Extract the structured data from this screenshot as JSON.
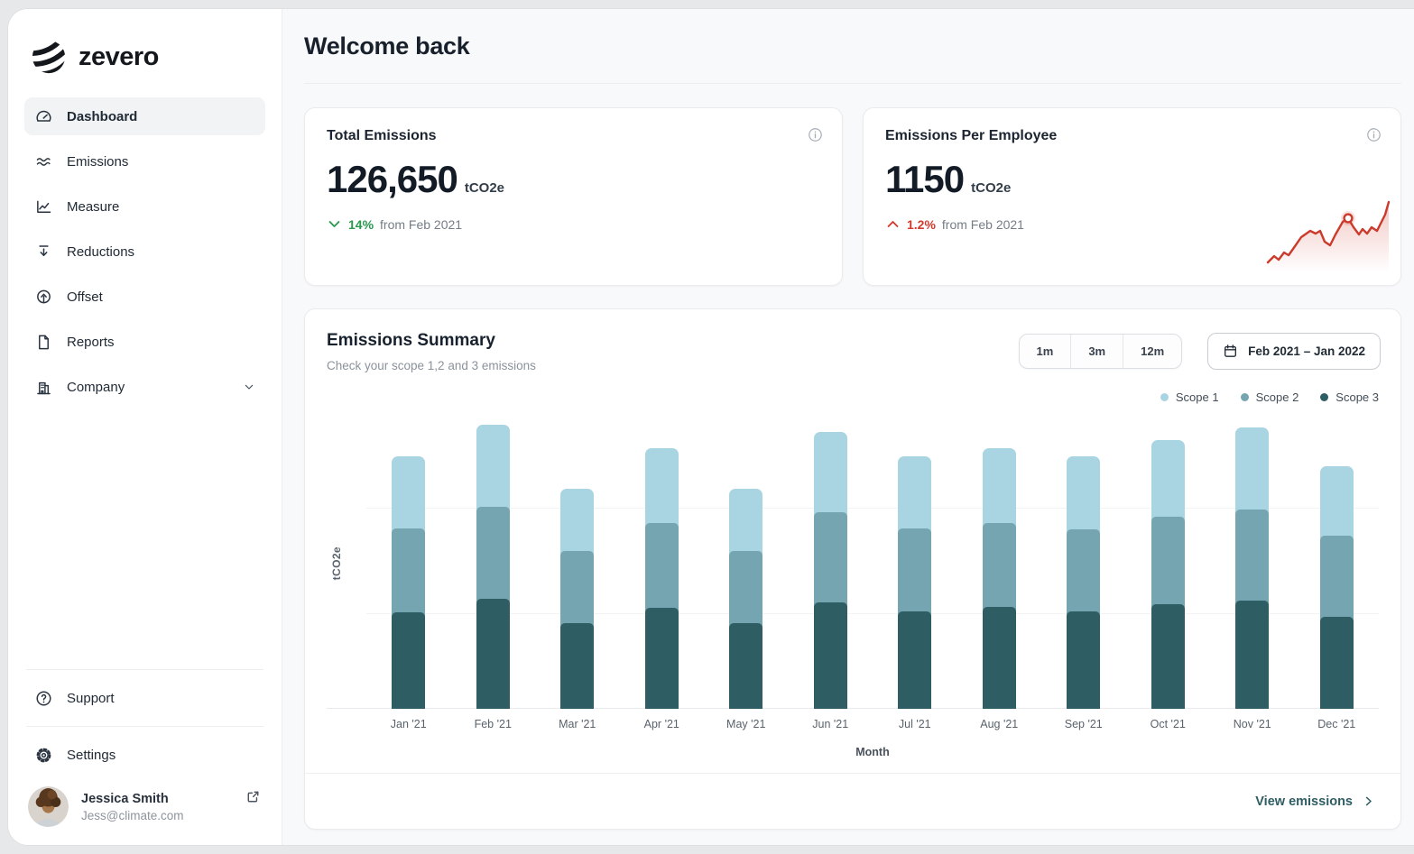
{
  "app": {
    "brand": "zevero"
  },
  "sidebar": {
    "nav": [
      {
        "id": "dashboard",
        "label": "Dashboard",
        "icon": "gauge-icon",
        "active": true,
        "has_chevron": false
      },
      {
        "id": "emissions",
        "label": "Emissions",
        "icon": "waves-icon",
        "active": false,
        "has_chevron": false
      },
      {
        "id": "measure",
        "label": "Measure",
        "icon": "line-chart-icon",
        "active": false,
        "has_chevron": false
      },
      {
        "id": "reductions",
        "label": "Reductions",
        "icon": "arrow-down-icon",
        "active": false,
        "has_chevron": false
      },
      {
        "id": "offset",
        "label": "Offset",
        "icon": "tree-icon",
        "active": false,
        "has_chevron": false
      },
      {
        "id": "reports",
        "label": "Reports",
        "icon": "document-icon",
        "active": false,
        "has_chevron": false
      },
      {
        "id": "company",
        "label": "Company",
        "icon": "building-icon",
        "active": false,
        "has_chevron": true
      }
    ],
    "footer_nav": [
      {
        "id": "support",
        "label": "Support",
        "icon": "question-circle-icon"
      },
      {
        "id": "settings",
        "label": "Settings",
        "icon": "gear-icon"
      }
    ],
    "user": {
      "name": "Jessica Smith",
      "email": "Jess@climate.com"
    }
  },
  "header": {
    "title": "Welcome back"
  },
  "cards": {
    "total": {
      "title": "Total Emissions",
      "value": "126,650",
      "unit": "tCO2e",
      "delta": "14%",
      "delta_suffix": "from Feb 2021",
      "trend": "down",
      "delta_color": "#28994f"
    },
    "per_employee": {
      "title": "Emissions Per Employee",
      "value": "1150",
      "unit": "tCO2e",
      "delta": "1.2%",
      "delta_suffix": "from Feb 2021",
      "trend": "up",
      "delta_color": "#d23b2c",
      "sparkline_color": "#cb3a2b"
    }
  },
  "summary": {
    "title": "Emissions Summary",
    "subtitle": "Check your scope 1,2 and 3 emissions",
    "range_buttons": [
      "1m",
      "3m",
      "12m"
    ],
    "date_range": "Feb 2021 – Jan 2022",
    "legend": [
      {
        "label": "Scope 1",
        "color": "#a9d4e1"
      },
      {
        "label": "Scope 2",
        "color": "#74a5b0"
      },
      {
        "label": "Scope 3",
        "color": "#2f5d64"
      }
    ],
    "y_label": "tCO2e",
    "x_label": "Month",
    "footer_link": "View emissions"
  },
  "chart_data": {
    "type": "bar",
    "stacked": true,
    "title": "Emissions Summary",
    "xlabel": "Month",
    "ylabel": "tCO2e",
    "grid": "faint horizontal lines",
    "legend_position": "top-right",
    "y_ticks": [],
    "values_unit": "relative units (no numeric y-axis labels shown; values estimated from bar heights)",
    "categories": [
      "Jan '21",
      "Feb '21",
      "Mar '21",
      "Apr '21",
      "May '21",
      "Jun '21",
      "Jul '21",
      "Aug '21",
      "Sep '21",
      "Oct '21",
      "Nov '21",
      "Dec '21"
    ],
    "series": [
      {
        "name": "Scope 1",
        "color": "#a9d4e1",
        "values": [
          80,
          91,
          69,
          83,
          69,
          89,
          80,
          83,
          81,
          85,
          91,
          77
        ]
      },
      {
        "name": "Scope 2",
        "color": "#74a5b0",
        "values": [
          93,
          102,
          80,
          94,
          80,
          100,
          92,
          93,
          91,
          97,
          101,
          90
        ]
      },
      {
        "name": "Scope 3",
        "color": "#2f5d64",
        "values": [
          102,
          117,
          90,
          107,
          90,
          113,
          103,
          108,
          103,
          111,
          115,
          97
        ]
      }
    ]
  },
  "colors": {
    "scope1": "#a9d4e1",
    "scope2": "#74a5b0",
    "scope3": "#2f5d64",
    "positive": "#28994f",
    "negative": "#d23b2c",
    "accent_text": "#2f5d64"
  }
}
